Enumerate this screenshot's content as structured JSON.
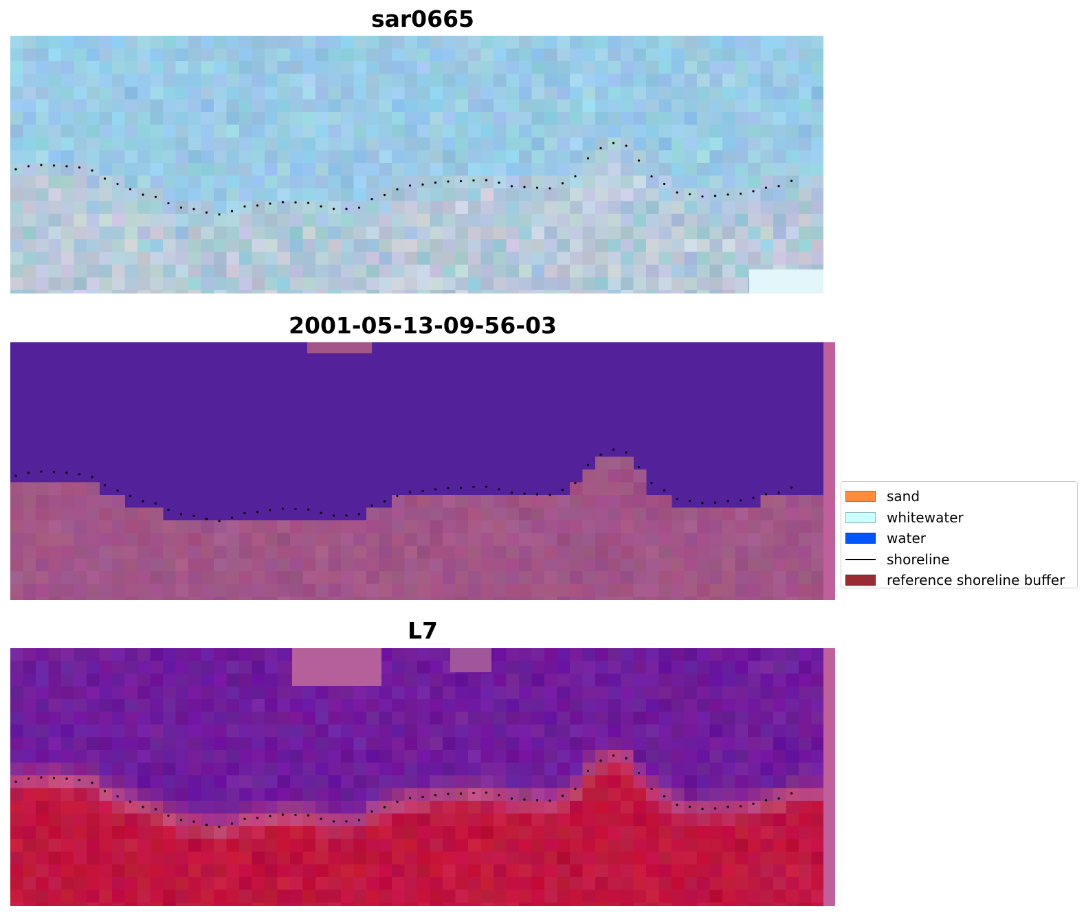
{
  "panels": [
    {
      "title": "sar0665"
    },
    {
      "title": "2001-05-13-09-56-03"
    },
    {
      "title": "L7"
    }
  ],
  "legend": {
    "items": [
      {
        "label": "sand",
        "color": "#ff8c3a",
        "kind": "patch"
      },
      {
        "label": "whitewater",
        "color": "#ccffff",
        "kind": "patch"
      },
      {
        "label": "water",
        "color": "#0055ff",
        "kind": "patch"
      },
      {
        "label": "shoreline",
        "color": "#000000",
        "kind": "line"
      },
      {
        "label": "reference shoreline buffer",
        "color": "#9b2b33",
        "kind": "patch"
      }
    ]
  },
  "colors": {
    "sar_water": "#9ecfe6",
    "sar_land": "#b5c6d6",
    "class_water": "#53229a",
    "class_land": "#a15687",
    "class_edge": "#c0609a",
    "l7_water": "#6f1d9c",
    "l7_transition": "#c14a7c",
    "l7_land": "#c0163f"
  }
}
